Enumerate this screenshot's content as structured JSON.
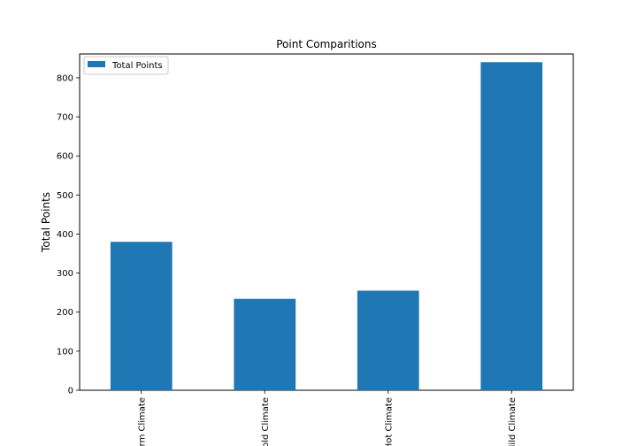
{
  "chart_data": {
    "type": "bar",
    "title": "Point Comparitions",
    "xlabel": "",
    "ylabel": "Total Points",
    "categories": [
      "Warm Climate",
      "Cold Climate",
      "Hot Climate",
      "Mild Climate"
    ],
    "series": [
      {
        "name": "Total Points",
        "values": [
          380,
          234,
          255,
          840
        ],
        "color": "#1f77b4"
      }
    ],
    "ylim": [
      0,
      861
    ],
    "yticks": [
      0,
      100,
      200,
      300,
      400,
      500,
      600,
      700,
      800
    ],
    "grid": false,
    "legend_position": "top-left"
  }
}
